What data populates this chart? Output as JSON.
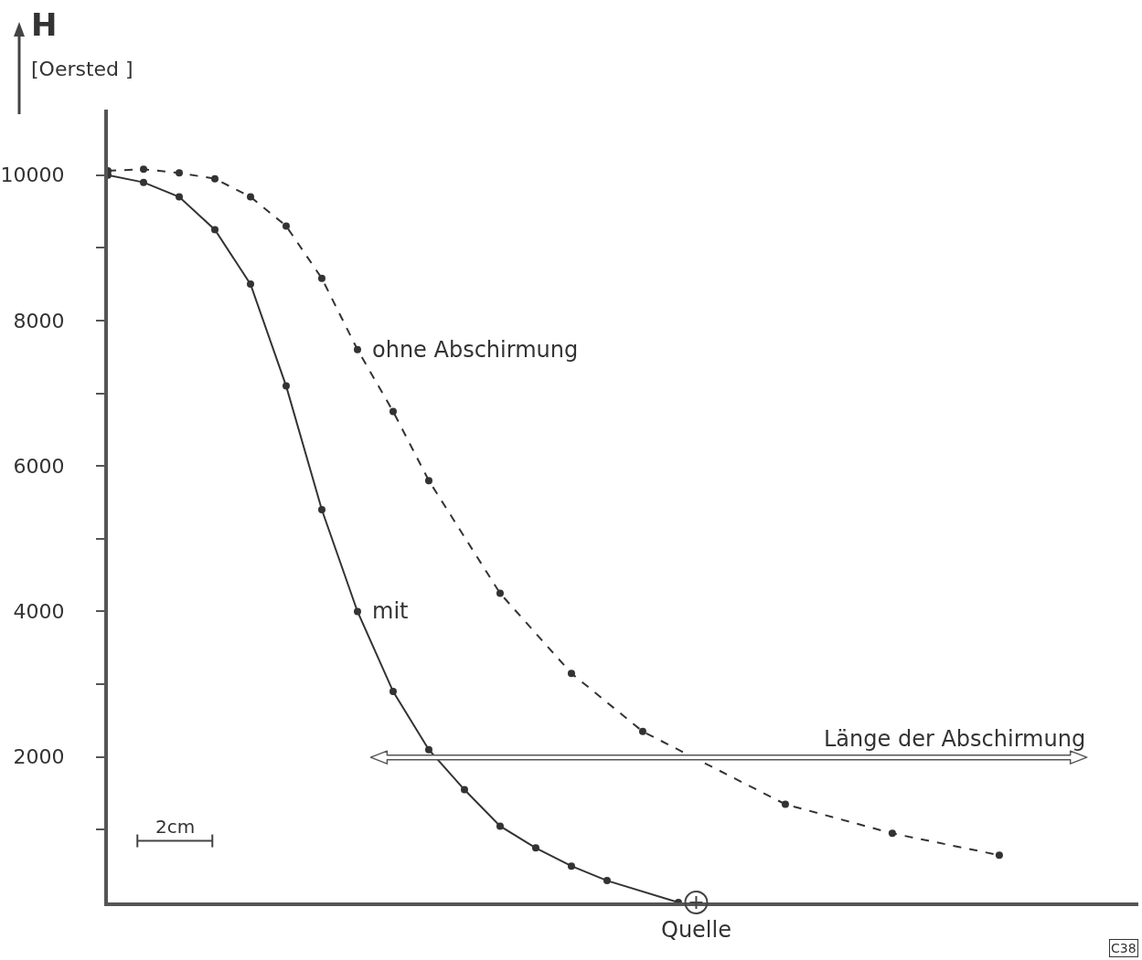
{
  "chart_data": {
    "type": "line",
    "ylabel": "H [Oersted ]",
    "categories": [
      null,
      null,
      null,
      null,
      null,
      null,
      null,
      null,
      null,
      null,
      null,
      null,
      null,
      null,
      null,
      null,
      null,
      null,
      null,
      null,
      null,
      null,
      null,
      null,
      null,
      null,
      null,
      null,
      null
    ],
    "ylim": [
      0,
      10900
    ],
    "yticks": [
      {
        "value": 1000,
        "label": null
      },
      2000,
      {
        "value": 3000,
        "label": null
      },
      4000,
      {
        "value": 5000,
        "label": null
      },
      6000,
      {
        "value": 7000,
        "label": null
      },
      8000,
      {
        "value": 9000,
        "label": null
      },
      10000
    ],
    "tick_labels": "y",
    "grid": false,
    "legend": false,
    "marker": "circle",
    "series": [
      {
        "name": "mit",
        "line_style": "solid",
        "color": "#333333",
        "values": [
          10000,
          9900,
          9700,
          9250,
          8500,
          7100,
          5400,
          4000,
          2900,
          2100,
          1550,
          1050,
          750,
          500,
          300,
          null,
          0,
          null,
          null,
          null,
          null,
          null,
          null,
          null,
          null,
          null,
          null,
          null,
          null
        ]
      },
      {
        "name": "ohne Abschirmung",
        "line_style": "dashed",
        "color": "#333333",
        "values": [
          10060,
          10080,
          10030,
          9950,
          9700,
          9300,
          8580,
          7600,
          6750,
          5800,
          null,
          4250,
          null,
          3150,
          null,
          2350,
          null,
          null,
          null,
          1350,
          null,
          null,
          950,
          null,
          null,
          650,
          null,
          null,
          null
        ]
      }
    ],
    "annotations": [
      "2cm",
      "C38",
      "Quelle",
      "Länge der Abschirmung"
    ]
  }
}
